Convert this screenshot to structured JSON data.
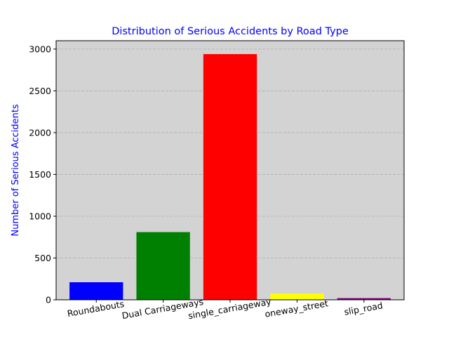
{
  "chart_data": {
    "type": "bar",
    "title": "Distribution of Serious Accidents by Road Type",
    "xlabel": "",
    "ylabel": "Number of Serious Accidents",
    "categories": [
      "Roundabouts",
      "Dual Carriageways",
      "single_carriageway",
      "oneway_street",
      "slip_road"
    ],
    "values": [
      210,
      810,
      2940,
      75,
      20
    ],
    "bar_colors": [
      "#0000ff",
      "#008000",
      "#ff0000",
      "#ffff00",
      "#800080"
    ],
    "ylim": [
      0,
      3100
    ],
    "yticks": [
      0,
      500,
      1000,
      1500,
      2000,
      2500,
      3000
    ],
    "grid": "y-dashed",
    "plot_background": "#d3d3d3",
    "title_color": "#0000ff",
    "ylabel_color": "#0000ff",
    "xtick_rotation_deg": 10
  }
}
